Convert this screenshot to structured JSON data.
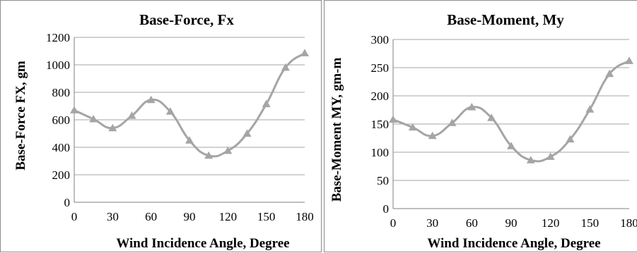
{
  "colors": {
    "series": "#a5a5a5",
    "grid": "#a6a6a6",
    "axis": "#7f7f7f"
  },
  "chart_data": [
    {
      "type": "line",
      "marker": "triangle",
      "smooth": true,
      "title": "Base-Force, Fx",
      "xlabel": "Wind Incidence Angle, Degree",
      "ylabel": "Base-Force FX, gm",
      "xlim": [
        0,
        180
      ],
      "ylim": [
        0,
        1200
      ],
      "xticks": [
        0,
        30,
        60,
        90,
        120,
        150,
        180
      ],
      "yticks": [
        0,
        200,
        400,
        600,
        800,
        1000,
        1200
      ],
      "grid": true,
      "series": [
        {
          "x": [
            0,
            15,
            30,
            45,
            60,
            75,
            90,
            105,
            120,
            135,
            150,
            165,
            180
          ],
          "y": [
            670,
            605,
            540,
            630,
            745,
            660,
            450,
            340,
            375,
            500,
            715,
            980,
            1085
          ]
        }
      ]
    },
    {
      "type": "line",
      "marker": "triangle",
      "smooth": true,
      "title": "Base-Moment, My",
      "xlabel": "Wind Incidence Angle, Degree",
      "ylabel": "Base-Moment MY, gm-m",
      "xlim": [
        0,
        180
      ],
      "ylim": [
        0,
        300
      ],
      "xticks": [
        0,
        30,
        60,
        90,
        120,
        150,
        180
      ],
      "yticks": [
        0,
        50,
        100,
        150,
        200,
        250,
        300
      ],
      "grid": true,
      "series": [
        {
          "x": [
            0,
            15,
            30,
            45,
            60,
            75,
            90,
            105,
            120,
            135,
            150,
            165,
            180
          ],
          "y": [
            158,
            144,
            129,
            152,
            180,
            161,
            111,
            86,
            92,
            123,
            176,
            239,
            262
          ]
        }
      ]
    }
  ]
}
